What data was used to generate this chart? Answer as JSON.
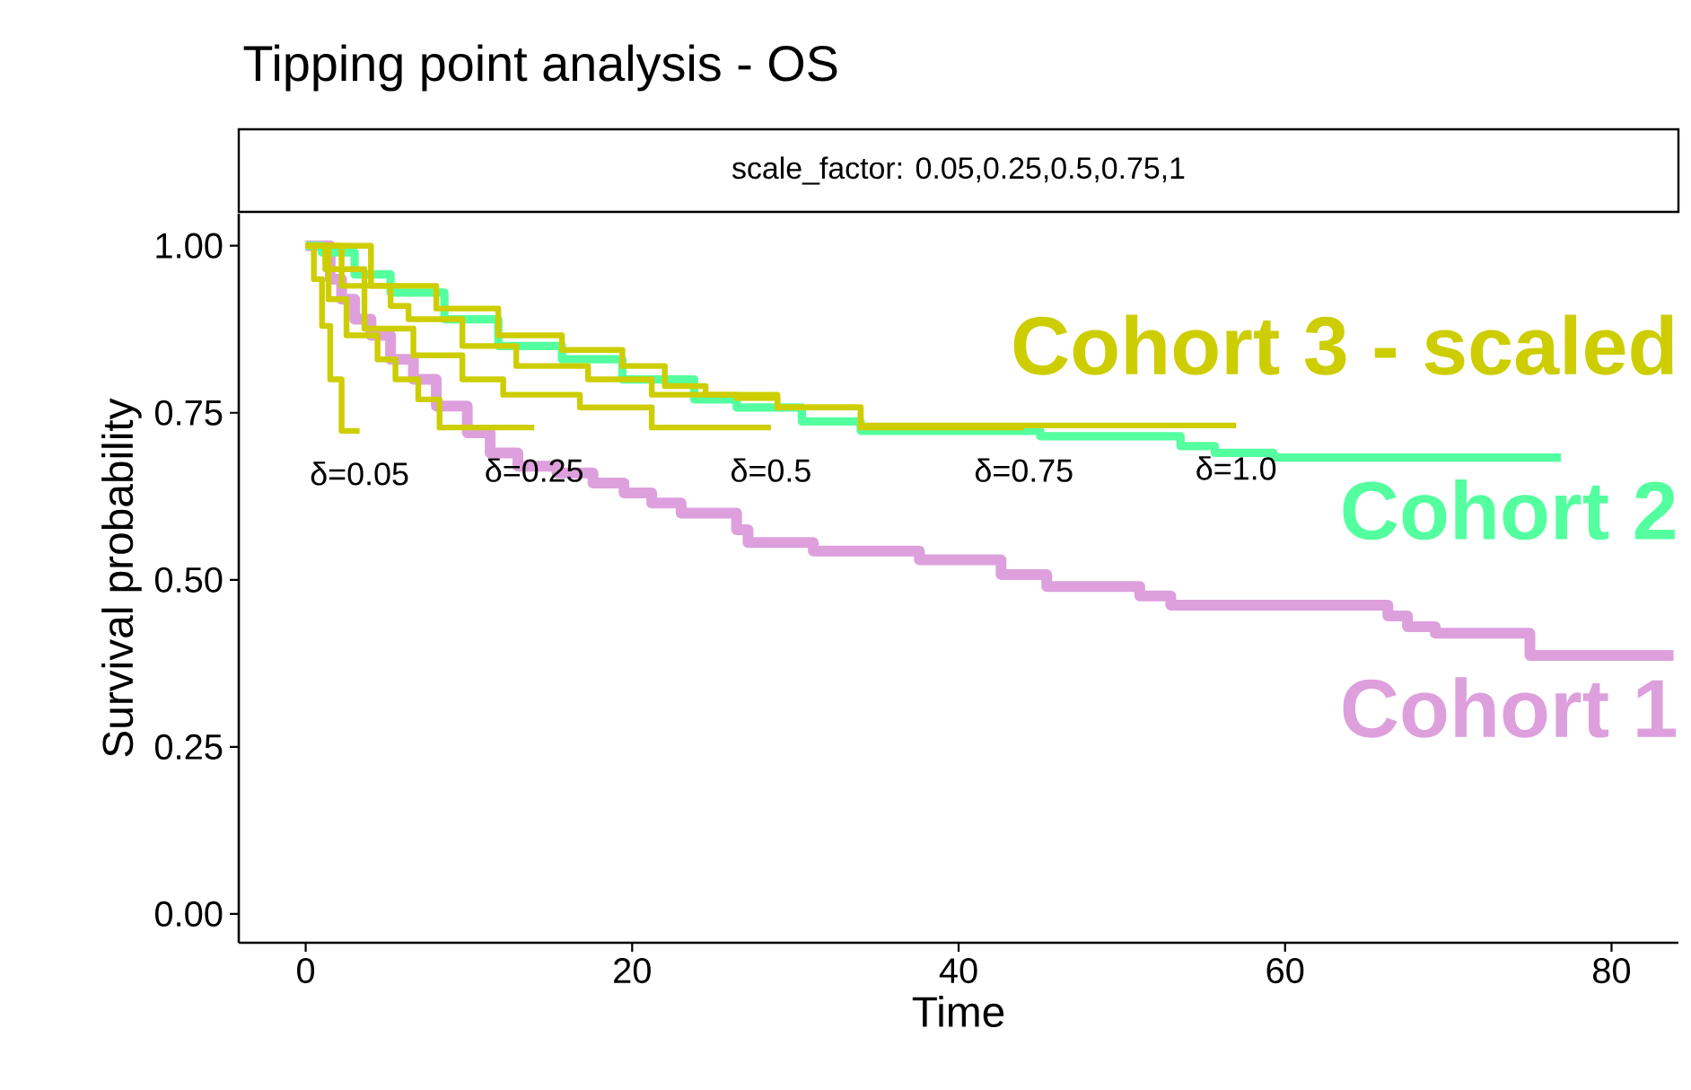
{
  "chart_data": {
    "type": "step",
    "title": "Tipping point analysis - OS",
    "subtitle": "scale_factor: 0.05,0.25,0.5,0.75,1",
    "xlabel": "Time",
    "ylabel": "Survival probability",
    "xlim": [
      -4.1,
      84.1
    ],
    "ylim": [
      -0.043,
      1.048
    ],
    "xticks": [
      0,
      20,
      40,
      60,
      80
    ],
    "yticks": [
      {
        "value": 0,
        "label": "0.00"
      },
      {
        "value": 0.25,
        "label": "0.25"
      },
      {
        "value": 0.5,
        "label": "0.50"
      },
      {
        "value": 0.75,
        "label": "0.75"
      },
      {
        "value": 1,
        "label": "1.00"
      }
    ],
    "grid": false,
    "legend": false,
    "line_style": "solid",
    "annotations": [
      "Cohort 3 - scaled"
    ],
    "series": [
      {
        "name": "Cohort 1",
        "color": "#dda0dd",
        "x": [
          0,
          1.5,
          2.2,
          3,
          4,
          5.2,
          6.6,
          8,
          9.9,
          11.3,
          13,
          15.4,
          17.6,
          19.5,
          21.2,
          23,
          26.4,
          27.1,
          31.1,
          37.6,
          42.6,
          45.4,
          51.1,
          53,
          66.3,
          67.5,
          69.2,
          75,
          83.8
        ],
        "values": [
          1.0,
          0.95,
          0.92,
          0.89,
          0.866,
          0.83,
          0.8,
          0.76,
          0.72,
          0.69,
          0.67,
          0.66,
          0.645,
          0.63,
          0.615,
          0.6,
          0.575,
          0.556,
          0.543,
          0.53,
          0.508,
          0.49,
          0.476,
          0.462,
          0.446,
          0.43,
          0.42,
          0.387,
          0.387
        ]
      },
      {
        "name": "Cohort 2",
        "color": "#54ff9f",
        "x": [
          0,
          1,
          3,
          5.2,
          8.5,
          11.8,
          15.7,
          19.4,
          23.8,
          26.4,
          30.4,
          34,
          45,
          53.6,
          55.7,
          59.3,
          76.9
        ],
        "values": [
          1.0,
          0.99,
          0.957,
          0.93,
          0.89,
          0.85,
          0.83,
          0.8,
          0.77,
          0.758,
          0.737,
          0.723,
          0.715,
          0.7,
          0.69,
          0.683,
          0.683
        ]
      },
      {
        "name": "δ=0.05",
        "color": "#cdcd00",
        "x": [
          0,
          0.5,
          1,
          1.5,
          2.2,
          3.3
        ],
        "values": [
          1.0,
          0.95,
          0.88,
          0.8,
          0.723,
          0.723
        ]
      },
      {
        "name": "δ=0.25",
        "color": "#cdcd00",
        "x": [
          0,
          1.4,
          2.5,
          4.4,
          5.5,
          6.9,
          8.2,
          14
        ],
        "values": [
          1.0,
          0.92,
          0.866,
          0.83,
          0.8,
          0.77,
          0.728,
          0.728
        ]
      },
      {
        "name": "δ=0.5",
        "color": "#cdcd00",
        "x": [
          0,
          1.2,
          3.6,
          6.6,
          9.6,
          12.1,
          16.8,
          21.2,
          28.5
        ],
        "values": [
          1.0,
          0.965,
          0.876,
          0.836,
          0.8,
          0.777,
          0.758,
          0.728,
          0.728
        ]
      },
      {
        "name": "δ=0.75",
        "color": "#cdcd00",
        "x": [
          0,
          2.2,
          5.2,
          6.3,
          9.6,
          12.9,
          17.3,
          21.2,
          26.4,
          28.9,
          34,
          44
        ],
        "values": [
          1.0,
          0.94,
          0.91,
          0.89,
          0.85,
          0.82,
          0.8,
          0.777,
          0.772,
          0.758,
          0.728,
          0.728
        ]
      },
      {
        "name": "δ=1.0",
        "color": "#cdcd00",
        "x": [
          0,
          4,
          8,
          11.8,
          15.7,
          19.4,
          22,
          24.5,
          28.9,
          34,
          57
        ],
        "values": [
          1.0,
          0.94,
          0.906,
          0.866,
          0.844,
          0.82,
          0.79,
          0.777,
          0.758,
          0.731,
          0.731
        ]
      }
    ]
  }
}
